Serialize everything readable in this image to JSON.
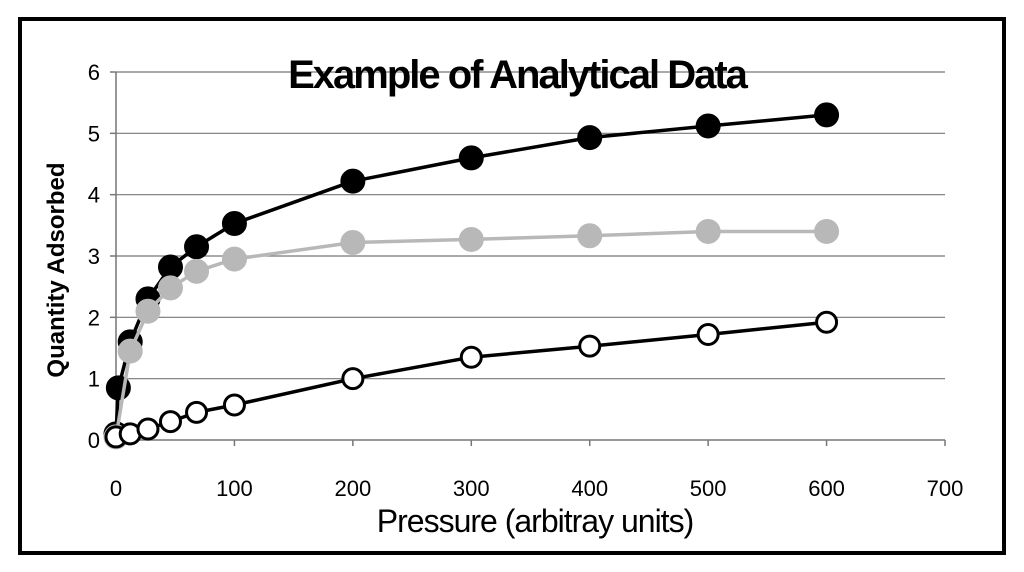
{
  "chart_data": {
    "type": "scatter",
    "title": "Example of Analytical Data",
    "xlabel": "Pressure (arbitray units)",
    "ylabel": "Quantity Adsorbed",
    "xlim": [
      0,
      700
    ],
    "ylim": [
      0,
      6
    ],
    "xticks": [
      0,
      100,
      200,
      300,
      400,
      500,
      600,
      700
    ],
    "yticks": [
      0,
      1,
      2,
      3,
      4,
      5,
      6
    ],
    "grid": "horizontal",
    "legend": "none",
    "series": [
      {
        "marker": "filled-black",
        "color": "#000000",
        "x": [
          0,
          2,
          12,
          27,
          46,
          68,
          100,
          200,
          300,
          400,
          500,
          600
        ],
        "y": [
          0.1,
          0.85,
          1.6,
          2.3,
          2.82,
          3.15,
          3.53,
          4.22,
          4.6,
          4.93,
          5.12,
          5.3
        ]
      },
      {
        "marker": "filled-gray",
        "color": "#b8b8b8",
        "x": [
          0,
          12,
          27,
          46,
          68,
          100,
          200,
          300,
          400,
          500,
          600
        ],
        "y": [
          0.05,
          1.45,
          2.1,
          2.48,
          2.75,
          2.95,
          3.22,
          3.27,
          3.33,
          3.4,
          3.4
        ]
      },
      {
        "marker": "open",
        "color": "#000000",
        "x": [
          0,
          12,
          27,
          46,
          68,
          100,
          200,
          300,
          400,
          500,
          600
        ],
        "y": [
          0.05,
          0.1,
          0.18,
          0.3,
          0.45,
          0.57,
          1.0,
          1.35,
          1.53,
          1.72,
          1.92
        ]
      }
    ]
  }
}
